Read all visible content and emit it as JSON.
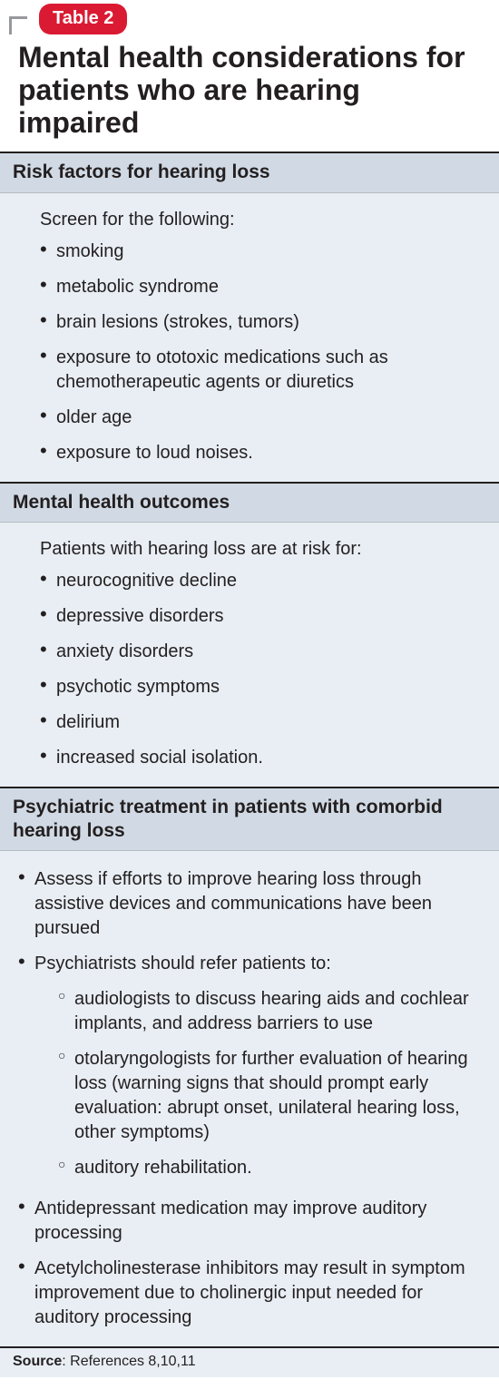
{
  "colors": {
    "badge_bg": "#da1a32",
    "badge_text": "#ffffff",
    "header_bg": "#d1dae4",
    "body_bg": "#e8eef4",
    "rule": "#231f20",
    "corner": "#97989b",
    "text": "#231f20"
  },
  "badge": "Table 2",
  "title": "Mental health considerations for patients who are hearing impaired",
  "sections": [
    {
      "header": "Risk factors for hearing loss",
      "intro": "Screen for the following:",
      "items": [
        "smoking",
        "metabolic syndrome",
        "brain lesions (strokes, tumors)",
        "exposure to ototoxic medications such as chemotherapeutic agents or diuretics",
        "older age",
        "exposure to loud noises."
      ]
    },
    {
      "header": "Mental health outcomes",
      "intro": "Patients with hearing loss are at risk for:",
      "items": [
        "neurocognitive decline",
        "depressive disorders",
        "anxiety disorders",
        "psychotic symptoms",
        "delirium",
        "increased social isolation."
      ]
    },
    {
      "header": "Psychiatric treatment in patients with comorbid hearing loss",
      "items": [
        {
          "text": "Assess if efforts to improve hearing loss through assistive devices and communications have been pursued"
        },
        {
          "text": "Psychiatrists should refer patients to:",
          "sub": [
            "audiologists to discuss hearing aids and cochlear implants, and address barriers to use",
            "otolaryngologists for further evaluation of hearing loss (warning signs that should prompt early evaluation: abrupt onset, unilateral hearing loss, other symptoms)",
            "auditory rehabilitation."
          ]
        },
        {
          "text": "Antidepressant medication may improve auditory processing"
        },
        {
          "text": "Acetylcholinesterase inhibitors may result in symptom improvement due to cholinergic input needed for auditory processing"
        }
      ]
    }
  ],
  "source_label": "Source",
  "source_text": ": References 8,10,11"
}
